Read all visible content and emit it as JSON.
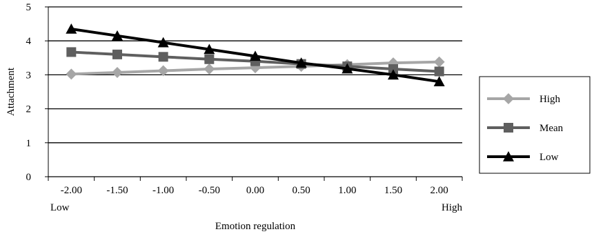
{
  "chart_data": {
    "type": "line",
    "title": "",
    "xlabel": "Emotion regulation",
    "ylabel": "Attachment",
    "x": [
      -2.0,
      -1.5,
      -1.0,
      -0.5,
      0.0,
      0.5,
      1.0,
      1.5,
      2.0
    ],
    "x_tick_labels": [
      "-2.00",
      "-1.50",
      "-1.00",
      "-0.50",
      "0.00",
      "0.50",
      "1.00",
      "1.50",
      "2.00"
    ],
    "x_end_labels": {
      "low": "Low",
      "high": "High"
    },
    "y_ticks": [
      0,
      1,
      2,
      3,
      4,
      5
    ],
    "ylim": [
      0,
      5
    ],
    "grid": "horizontal",
    "legend_position": "right",
    "series": [
      {
        "name": "High",
        "marker": "diamond",
        "color": "#a6a6a6",
        "values": [
          3.02,
          3.07,
          3.12,
          3.17,
          3.21,
          3.25,
          3.3,
          3.35,
          3.38
        ]
      },
      {
        "name": "Mean",
        "marker": "square",
        "color": "#5f5f5f",
        "values": [
          3.67,
          3.6,
          3.53,
          3.46,
          3.4,
          3.32,
          3.25,
          3.17,
          3.1
        ]
      },
      {
        "name": "Low",
        "marker": "triangle",
        "color": "#000000",
        "values": [
          4.35,
          4.15,
          3.95,
          3.75,
          3.55,
          3.35,
          3.18,
          3.0,
          2.8
        ]
      }
    ]
  }
}
